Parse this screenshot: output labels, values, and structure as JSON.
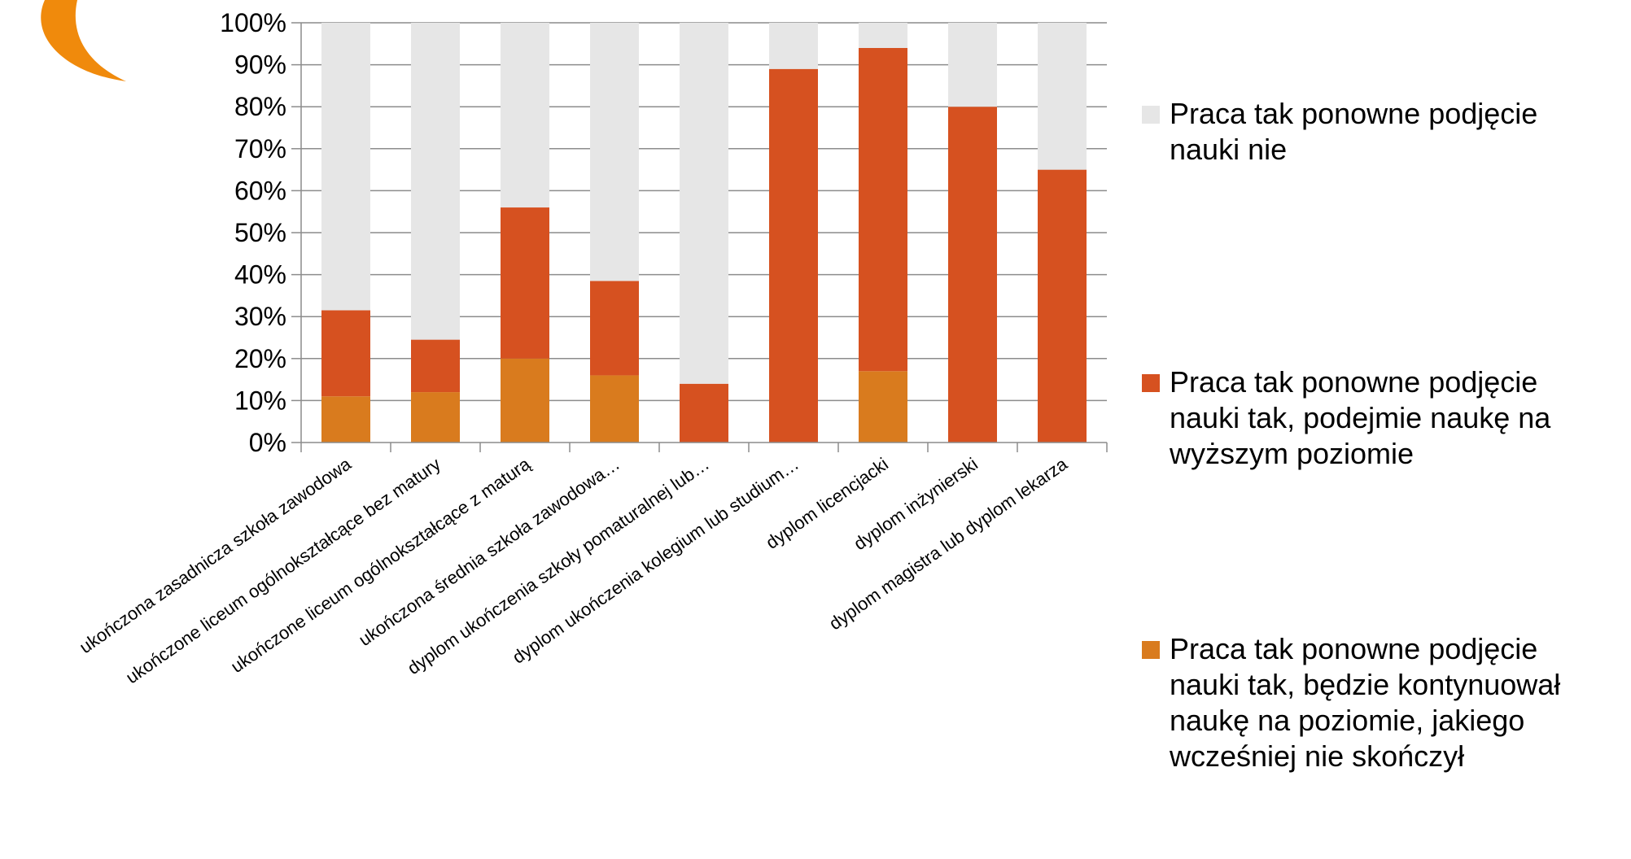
{
  "chart_data": {
    "type": "bar",
    "stacked": true,
    "percent_stacked": true,
    "categories": [
      "ukończona zasadnicza szkoła zawodowa",
      "ukończone liceum ogólnokształcące bez matury",
      "ukończone liceum ogólnokształcące z maturą",
      "ukończona średnia szkoła zawodowa…",
      "dyplom ukończenia szkoły pomaturalnej lub…",
      "dyplom ukończenia kolegium lub studium…",
      "dyplom licencjacki",
      "dyplom inżynierski",
      "dyplom magistra lub dyplom lekarza"
    ],
    "series": [
      {
        "name": "Praca tak ponowne podjęcie nauki tak, będzie kontynuował naukę na poziomie, jakiego wcześniej nie skończył",
        "color": "#d97b1e",
        "values": [
          11,
          12,
          20,
          16,
          0,
          0,
          17,
          0,
          0
        ]
      },
      {
        "name": "Praca tak ponowne podjęcie nauki tak, podejmie naukę na wyższym poziomie",
        "color": "#d65120",
        "values": [
          20.5,
          12.5,
          36,
          22.5,
          14,
          89,
          77,
          80,
          65
        ]
      },
      {
        "name": "Praca tak ponowne podjęcie nauki nie",
        "color": "#e6e6e6",
        "values": [
          68.5,
          75.5,
          44,
          61.5,
          86,
          11,
          6,
          20,
          35
        ]
      }
    ],
    "yticks": [
      "0%",
      "10%",
      "20%",
      "30%",
      "40%",
      "50%",
      "60%",
      "70%",
      "80%",
      "90%",
      "100%"
    ],
    "ylim": [
      0,
      100
    ],
    "grid": true,
    "legend": {
      "position": "right",
      "entries": [
        {
          "series_index": 2,
          "lines": [
            "Praca tak ponowne podjęcie",
            "nauki nie"
          ]
        },
        {
          "series_index": 1,
          "lines": [
            "Praca tak ponowne podjęcie",
            "nauki tak, podejmie naukę na",
            "wyższym poziomie"
          ]
        },
        {
          "series_index": 0,
          "lines": [
            "Praca tak ponowne podjęcie",
            "nauki tak, będzie kontynuował",
            "naukę na poziomie, jakiego",
            "wcześniej nie skończył"
          ]
        }
      ]
    }
  },
  "decor": {
    "logo_color": "#f08a0c"
  }
}
